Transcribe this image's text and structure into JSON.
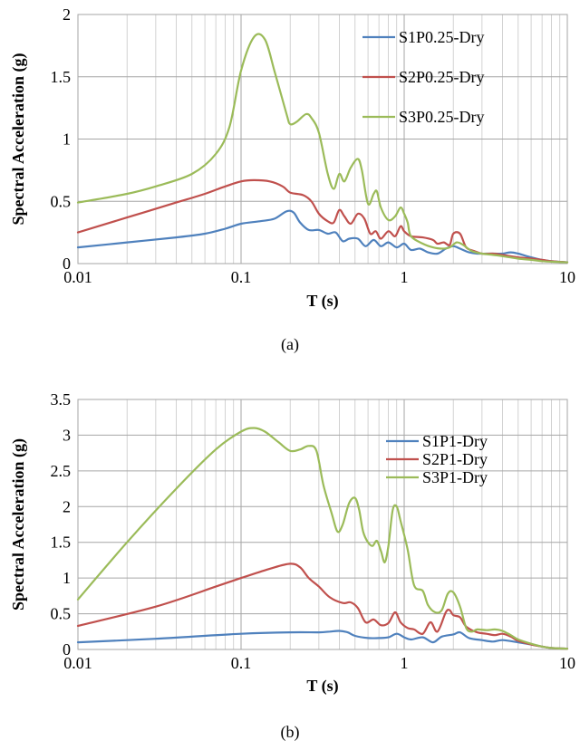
{
  "chart_data": [
    {
      "type": "line",
      "panel_label": "(a)",
      "title": "",
      "xlabel": "T (s)",
      "ylabel": "Spectral Acceleration (g)",
      "xscale": "log",
      "xlim": [
        0.01,
        10
      ],
      "ylim": [
        0,
        2
      ],
      "xticks": [
        0.01,
        0.1,
        1,
        10
      ],
      "xtick_labels": [
        "0.01",
        "0.1",
        "1",
        "10"
      ],
      "yticks": [
        0,
        0.5,
        1,
        1.5,
        2
      ],
      "ytick_labels": [
        "0",
        "0.5",
        "1",
        "1.5",
        "2"
      ],
      "grid": true,
      "legend_position": "top-right",
      "series": [
        {
          "name": "S1P0.25-Dry",
          "color": "#4f81bd",
          "x": [
            0.01,
            0.02,
            0.04,
            0.06,
            0.08,
            0.1,
            0.13,
            0.16,
            0.19,
            0.21,
            0.23,
            0.26,
            0.3,
            0.34,
            0.38,
            0.42,
            0.46,
            0.52,
            0.58,
            0.65,
            0.72,
            0.8,
            0.9,
            1.0,
            1.1,
            1.25,
            1.4,
            1.6,
            1.8,
            2.0,
            2.2,
            2.5,
            2.8,
            3.2,
            3.6,
            4.0,
            4.5,
            5.0,
            6.0,
            7.0,
            8.0,
            10
          ],
          "y": [
            0.13,
            0.17,
            0.21,
            0.24,
            0.28,
            0.32,
            0.34,
            0.36,
            0.42,
            0.41,
            0.33,
            0.27,
            0.27,
            0.24,
            0.25,
            0.18,
            0.2,
            0.2,
            0.14,
            0.19,
            0.14,
            0.17,
            0.13,
            0.16,
            0.11,
            0.12,
            0.09,
            0.08,
            0.12,
            0.14,
            0.12,
            0.09,
            0.08,
            0.08,
            0.08,
            0.08,
            0.09,
            0.08,
            0.05,
            0.03,
            0.02,
            0.01
          ]
        },
        {
          "name": "S2P0.25-Dry",
          "color": "#c0504d",
          "x": [
            0.01,
            0.02,
            0.04,
            0.06,
            0.08,
            0.1,
            0.12,
            0.15,
            0.18,
            0.2,
            0.24,
            0.27,
            0.3,
            0.34,
            0.37,
            0.4,
            0.43,
            0.47,
            0.52,
            0.57,
            0.62,
            0.67,
            0.72,
            0.8,
            0.88,
            0.95,
            1.0,
            1.1,
            1.3,
            1.5,
            1.6,
            1.75,
            1.9,
            2.0,
            2.2,
            2.4,
            2.7,
            3.0,
            3.5,
            4.0,
            5.0,
            6.0,
            7.0,
            8.0,
            10
          ],
          "y": [
            0.25,
            0.37,
            0.49,
            0.56,
            0.62,
            0.66,
            0.67,
            0.66,
            0.62,
            0.57,
            0.55,
            0.5,
            0.4,
            0.34,
            0.33,
            0.43,
            0.38,
            0.32,
            0.4,
            0.36,
            0.24,
            0.26,
            0.2,
            0.26,
            0.22,
            0.3,
            0.26,
            0.22,
            0.21,
            0.19,
            0.16,
            0.17,
            0.15,
            0.24,
            0.24,
            0.13,
            0.1,
            0.08,
            0.08,
            0.07,
            0.05,
            0.04,
            0.03,
            0.02,
            0.01
          ]
        },
        {
          "name": "S3P0.25-Dry",
          "color": "#9bbb59",
          "x": [
            0.01,
            0.02,
            0.03,
            0.05,
            0.07,
            0.085,
            0.1,
            0.12,
            0.14,
            0.16,
            0.19,
            0.2,
            0.22,
            0.25,
            0.27,
            0.3,
            0.34,
            0.37,
            0.4,
            0.43,
            0.47,
            0.52,
            0.55,
            0.6,
            0.65,
            0.68,
            0.72,
            0.8,
            0.88,
            0.95,
            1.0,
            1.05,
            1.1,
            1.3,
            1.5,
            1.7,
            1.9,
            2.1,
            2.3,
            2.6,
            3.0,
            3.5,
            4.0,
            5.0,
            6.0,
            7.0,
            8.0,
            10
          ],
          "y": [
            0.49,
            0.56,
            0.62,
            0.72,
            0.88,
            1.1,
            1.55,
            1.82,
            1.8,
            1.55,
            1.2,
            1.12,
            1.14,
            1.2,
            1.17,
            1.05,
            0.72,
            0.6,
            0.72,
            0.66,
            0.77,
            0.84,
            0.75,
            0.48,
            0.56,
            0.58,
            0.45,
            0.35,
            0.38,
            0.45,
            0.4,
            0.33,
            0.22,
            0.16,
            0.13,
            0.12,
            0.13,
            0.17,
            0.15,
            0.1,
            0.08,
            0.07,
            0.06,
            0.04,
            0.03,
            0.02,
            0.015,
            0.01
          ]
        }
      ]
    },
    {
      "type": "line",
      "panel_label": "(b)",
      "title": "",
      "xlabel": "T (s)",
      "ylabel": "Spectral Acceleration (g)",
      "xscale": "log",
      "xlim": [
        0.01,
        10
      ],
      "ylim": [
        0,
        3.5
      ],
      "xticks": [
        0.01,
        0.1,
        1,
        10
      ],
      "xtick_labels": [
        "0.01",
        "0.1",
        "1",
        "10"
      ],
      "yticks": [
        0,
        0.5,
        1,
        1.5,
        2,
        2.5,
        3,
        3.5
      ],
      "ytick_labels": [
        "0",
        "0.5",
        "1",
        "1.5",
        "2",
        "2.5",
        "3",
        "3.5"
      ],
      "grid": true,
      "legend_position": "top-right",
      "series": [
        {
          "name": "S1P1-Dry",
          "color": "#4f81bd",
          "x": [
            0.01,
            0.03,
            0.1,
            0.2,
            0.3,
            0.35,
            0.4,
            0.45,
            0.5,
            0.6,
            0.7,
            0.8,
            0.9,
            1.0,
            1.1,
            1.3,
            1.5,
            1.7,
            2.0,
            2.2,
            2.5,
            3.0,
            3.5,
            4.0,
            5.0,
            6.0,
            7.0,
            8.0,
            10
          ],
          "y": [
            0.1,
            0.15,
            0.22,
            0.24,
            0.24,
            0.25,
            0.26,
            0.24,
            0.19,
            0.16,
            0.16,
            0.17,
            0.22,
            0.17,
            0.14,
            0.17,
            0.1,
            0.18,
            0.21,
            0.24,
            0.16,
            0.13,
            0.11,
            0.13,
            0.1,
            0.07,
            0.04,
            0.02,
            0.01
          ]
        },
        {
          "name": "S2P1-Dry",
          "color": "#c0504d",
          "x": [
            0.01,
            0.03,
            0.07,
            0.1,
            0.15,
            0.2,
            0.23,
            0.26,
            0.3,
            0.35,
            0.42,
            0.47,
            0.52,
            0.58,
            0.65,
            0.72,
            0.8,
            0.88,
            0.95,
            1.05,
            1.15,
            1.3,
            1.45,
            1.6,
            1.8,
            1.9,
            2.0,
            2.2,
            2.4,
            2.8,
            3.2,
            3.6,
            4.0,
            4.5,
            5.0,
            6.0,
            7.0,
            8.0,
            10
          ],
          "y": [
            0.33,
            0.6,
            0.88,
            1.0,
            1.13,
            1.2,
            1.15,
            1.0,
            0.88,
            0.73,
            0.65,
            0.66,
            0.58,
            0.38,
            0.42,
            0.34,
            0.37,
            0.52,
            0.38,
            0.3,
            0.28,
            0.22,
            0.38,
            0.25,
            0.52,
            0.55,
            0.48,
            0.45,
            0.32,
            0.24,
            0.22,
            0.2,
            0.22,
            0.18,
            0.12,
            0.07,
            0.04,
            0.02,
            0.01
          ]
        },
        {
          "name": "S3P1-Dry",
          "color": "#9bbb59",
          "x": [
            0.01,
            0.02,
            0.04,
            0.07,
            0.1,
            0.12,
            0.14,
            0.17,
            0.2,
            0.23,
            0.26,
            0.29,
            0.32,
            0.36,
            0.39,
            0.42,
            0.46,
            0.5,
            0.53,
            0.56,
            0.6,
            0.64,
            0.68,
            0.72,
            0.76,
            0.8,
            0.85,
            0.9,
            0.95,
            1.05,
            1.15,
            1.3,
            1.4,
            1.55,
            1.7,
            1.85,
            2.0,
            2.2,
            2.4,
            2.6,
            2.8,
            3.2,
            3.6,
            4.0,
            4.5,
            5.0,
            6.0,
            7.0,
            8.0,
            10
          ],
          "y": [
            0.7,
            1.5,
            2.25,
            2.8,
            3.05,
            3.1,
            3.05,
            2.9,
            2.78,
            2.8,
            2.85,
            2.78,
            2.3,
            1.9,
            1.65,
            1.75,
            2.05,
            2.12,
            1.95,
            1.65,
            1.5,
            1.45,
            1.52,
            1.38,
            1.22,
            1.45,
            1.95,
            2.0,
            1.8,
            1.4,
            0.9,
            0.82,
            0.62,
            0.52,
            0.55,
            0.78,
            0.8,
            0.6,
            0.3,
            0.25,
            0.28,
            0.27,
            0.28,
            0.26,
            0.2,
            0.14,
            0.08,
            0.04,
            0.02,
            0.01
          ]
        }
      ]
    }
  ]
}
